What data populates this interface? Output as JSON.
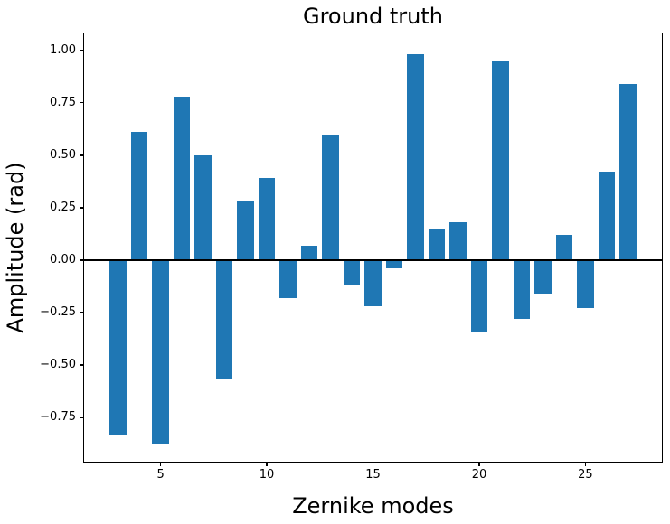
{
  "figure": {
    "background": "#ffffff",
    "text_color": "#000000"
  },
  "chart_data": {
    "type": "bar",
    "title": "Ground truth",
    "xlabel": "Zernike modes",
    "ylabel": "Amplitude (rad)",
    "categories": [
      3,
      4,
      5,
      6,
      7,
      8,
      9,
      10,
      11,
      12,
      13,
      14,
      15,
      16,
      17,
      18,
      19,
      20,
      21,
      22,
      23,
      24,
      25,
      26,
      27
    ],
    "values": [
      -0.83,
      0.61,
      -0.88,
      0.78,
      0.5,
      -0.57,
      0.28,
      0.39,
      -0.18,
      0.07,
      0.6,
      -0.12,
      -0.22,
      -0.04,
      0.98,
      0.15,
      0.18,
      -0.34,
      0.95,
      -0.28,
      -0.16,
      0.12,
      -0.23,
      0.42,
      0.84
    ],
    "bar_color": "#1f77b4",
    "bar_width": 0.8,
    "xlim": [
      1.4,
      28.6
    ],
    "ylim": [
      -0.96,
      1.08
    ],
    "x_ticks": [
      5,
      10,
      15,
      20,
      25
    ],
    "x_tick_labels": [
      "5",
      "10",
      "15",
      "20",
      "25"
    ],
    "y_ticks": [
      1.0,
      0.75,
      0.5,
      0.25,
      0.0,
      -0.25,
      -0.5,
      -0.75
    ],
    "y_tick_labels": [
      "1.00",
      "0.75",
      "0.50",
      "0.25",
      "0.00",
      "−0.25",
      "−0.50",
      "−0.75"
    ],
    "zero_line": true,
    "grid": false,
    "legend": null
  }
}
